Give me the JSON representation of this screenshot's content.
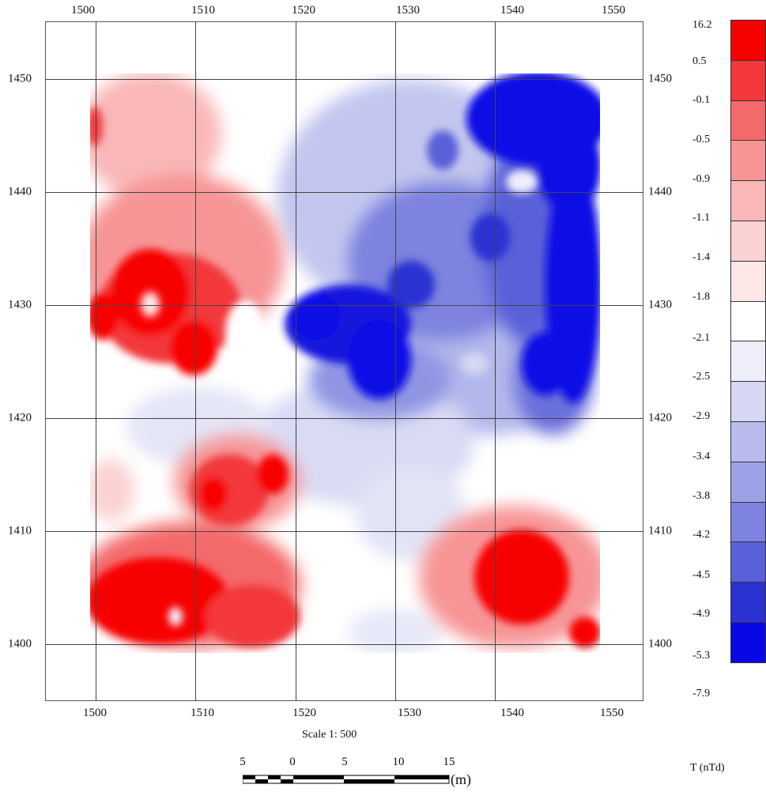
{
  "map": {
    "x_ticks": [
      "1500",
      "1510",
      "1520",
      "1530",
      "1540",
      "1550"
    ],
    "y_ticks": [
      "1450",
      "1440",
      "1430",
      "1420",
      "1410",
      "1400"
    ],
    "x_range_m": [
      1496,
      1551
    ],
    "y_range_m": [
      1395,
      1455
    ]
  },
  "scale": {
    "text": "Scale 1: 500",
    "bar_numbers": [
      "5",
      "0",
      "5",
      "10",
      "15"
    ],
    "unit": "(m)"
  },
  "legend": {
    "title": "T (nTd)",
    "colors": [
      "#f70000",
      "#f2383a",
      "#f4696a",
      "#f79596",
      "#f9b7b8",
      "#fbd2d3",
      "#fde6e6",
      "#ffffff",
      "#eeeefb",
      "#d6d7f3",
      "#b8bbec",
      "#9da2e6",
      "#7d83df",
      "#5a61d8",
      "#2b32d2",
      "#0808e6"
    ],
    "labels": [
      "16.2",
      "0.5",
      "-0.1",
      "-0.5",
      "-0.9",
      "-1.1",
      "-1.4",
      "-1.8",
      "-2.1",
      "-2.5",
      "-2.9",
      "-3.4",
      "-3.8",
      "-4.2",
      "-4.5",
      "-4.9",
      "-5.3",
      "-7.9"
    ]
  }
}
